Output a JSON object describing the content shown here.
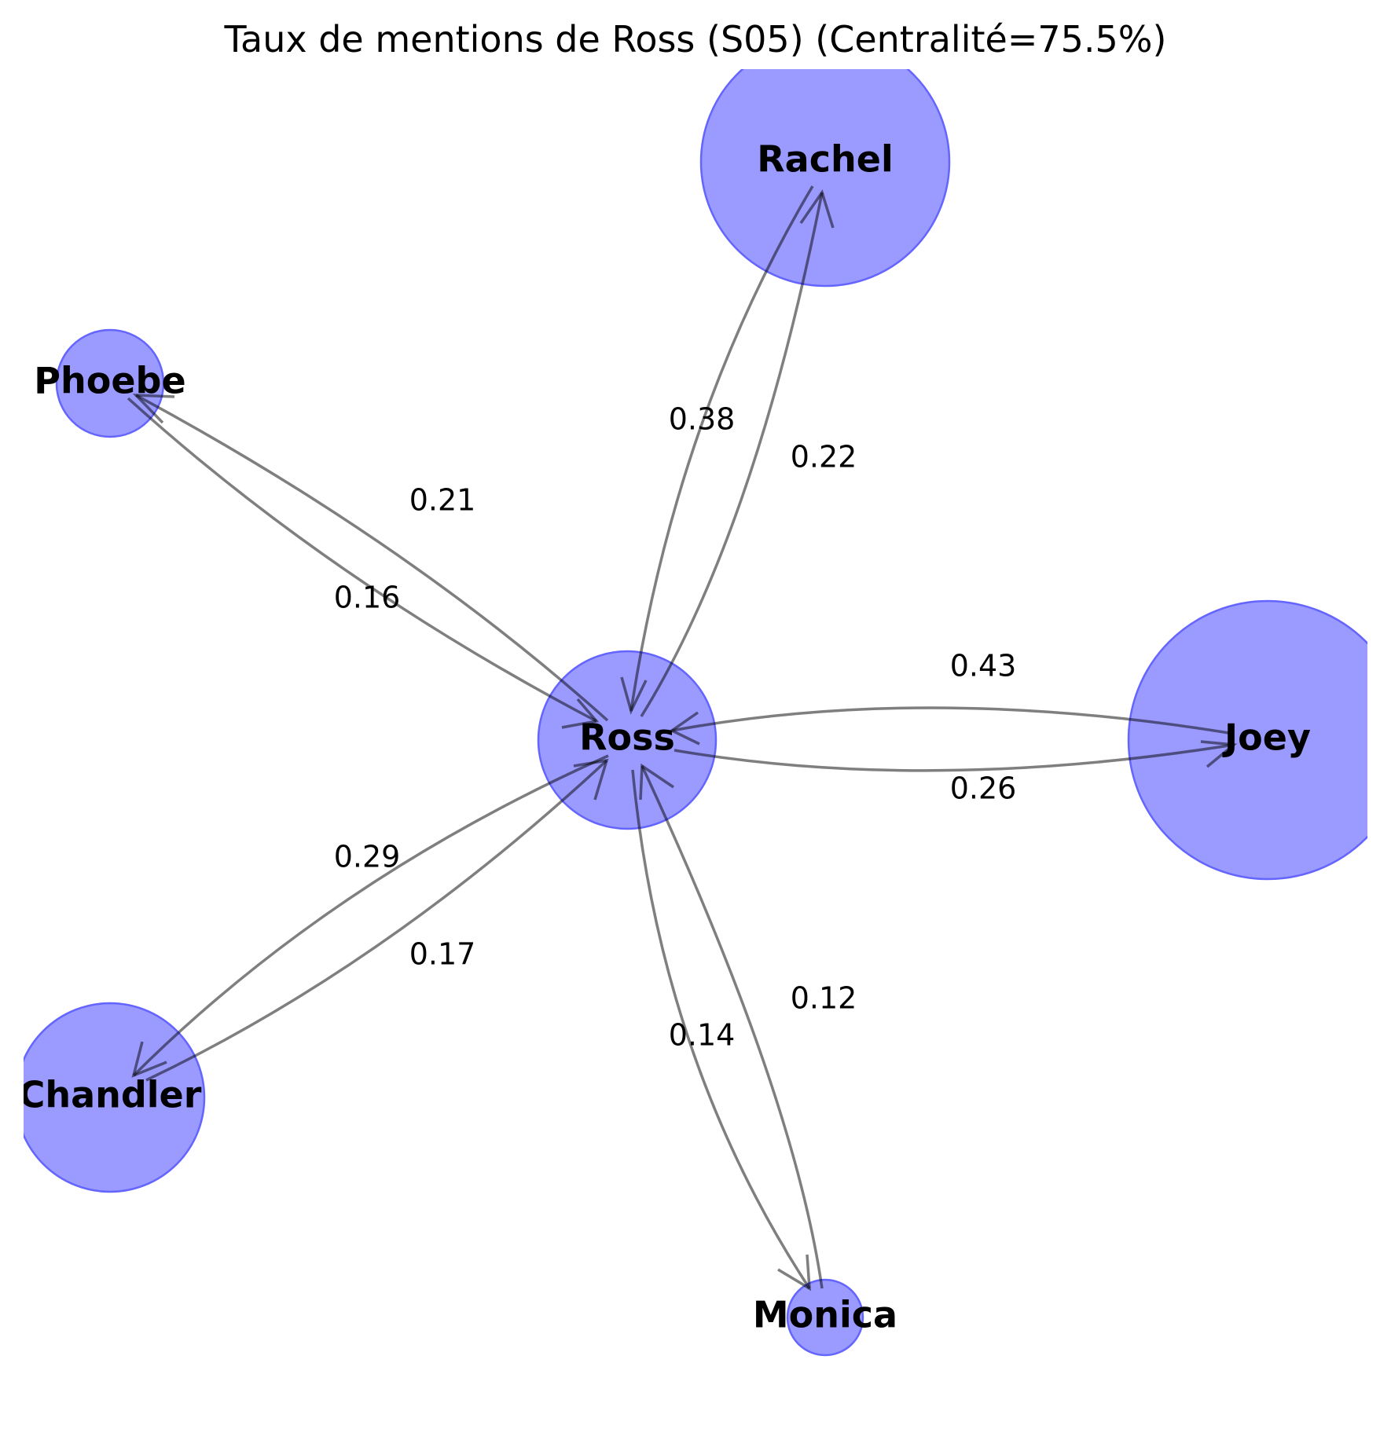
{
  "title": "Taux de mentions de Ross (S05) (Centralité=75.5%)",
  "colors": {
    "node_fill": "#9a9aff",
    "node_stroke": "#6464ff",
    "edge": "#808080"
  },
  "nodes": [
    {
      "id": "ross",
      "label": "Ross"
    },
    {
      "id": "rachel",
      "label": "Rachel"
    },
    {
      "id": "phoebe",
      "label": "Phoebe"
    },
    {
      "id": "joey",
      "label": "Joey"
    },
    {
      "id": "chandler",
      "label": "Chandler"
    },
    {
      "id": "monica",
      "label": "Monica"
    }
  ],
  "edges": [
    {
      "id": "ross-rachel",
      "from": "ross",
      "to": "rachel",
      "weight": "0.22"
    },
    {
      "id": "rachel-ross",
      "from": "rachel",
      "to": "ross",
      "weight": "0.38"
    },
    {
      "id": "ross-phoebe",
      "from": "ross",
      "to": "phoebe",
      "weight": "0.21"
    },
    {
      "id": "phoebe-ross",
      "from": "phoebe",
      "to": "ross",
      "weight": "0.16"
    },
    {
      "id": "ross-joey",
      "from": "ross",
      "to": "joey",
      "weight": "0.26"
    },
    {
      "id": "joey-ross",
      "from": "joey",
      "to": "ross",
      "weight": "0.43"
    },
    {
      "id": "ross-chandler",
      "from": "ross",
      "to": "chandler",
      "weight": "0.29"
    },
    {
      "id": "chandler-ross",
      "from": "chandler",
      "to": "ross",
      "weight": "0.17"
    },
    {
      "id": "ross-monica",
      "from": "ross",
      "to": "monica",
      "weight": "0.14"
    },
    {
      "id": "monica-ross",
      "from": "monica",
      "to": "ross",
      "weight": "0.12"
    }
  ]
}
